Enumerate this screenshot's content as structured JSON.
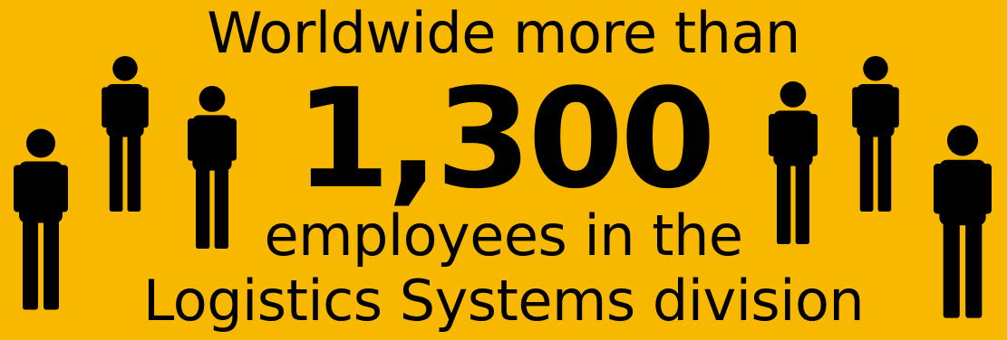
{
  "background_color": "#F9B800",
  "text_color": "#000000",
  "icon": "person-icon",
  "text": {
    "line1": "Worldwide more than",
    "figure": "1,300",
    "line3": "employees in the",
    "line4": "Logistics Systems division"
  }
}
